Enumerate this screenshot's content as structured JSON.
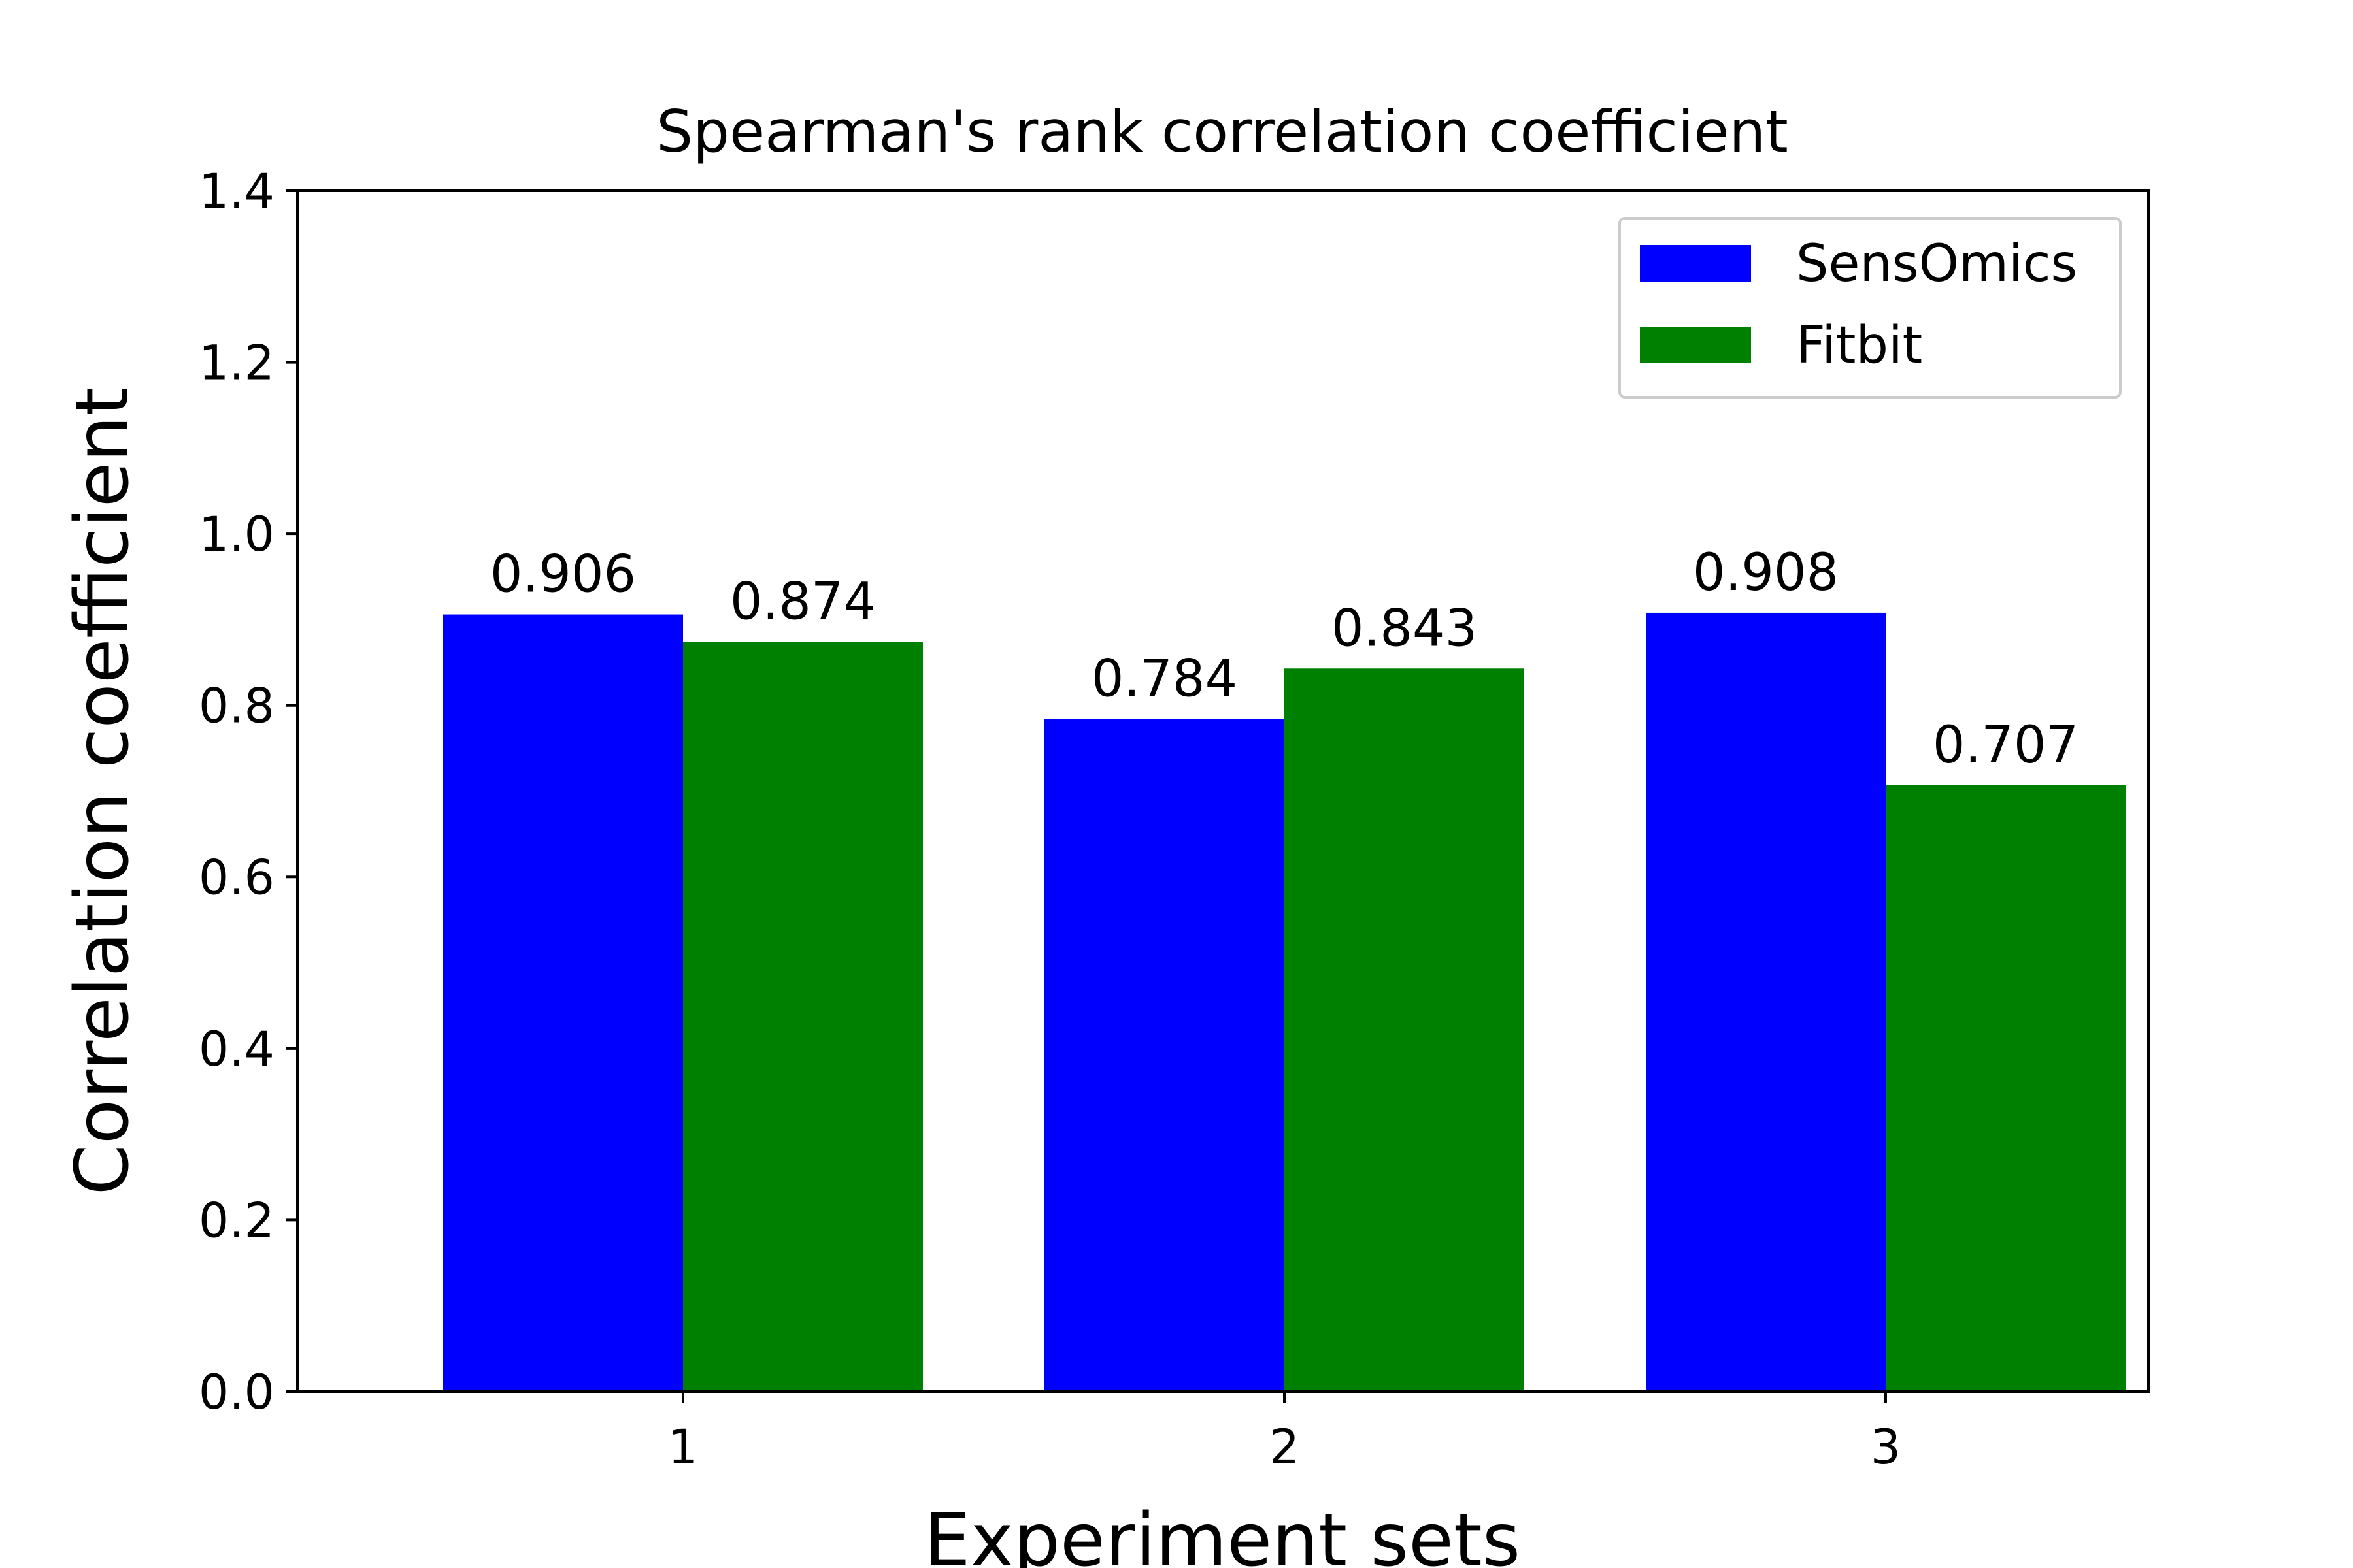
{
  "chart_data": {
    "type": "bar",
    "title": "Spearman's rank correlation coefficient",
    "xlabel": "Experiment sets",
    "ylabel": "Correlation coefficient",
    "categories": [
      "1",
      "2",
      "3"
    ],
    "series": [
      {
        "name": "SensOmics",
        "color": "#0000ff",
        "values": [
          0.906,
          0.784,
          0.908
        ],
        "labels": [
          "0.906",
          "0.784",
          "0.908"
        ]
      },
      {
        "name": "Fitbit",
        "color": "#008000",
        "values": [
          0.874,
          0.843,
          0.707
        ],
        "labels": [
          "0.874",
          "0.843",
          "0.707"
        ]
      }
    ],
    "ylim": [
      0,
      1.4
    ],
    "yticks": [
      0.0,
      0.2,
      0.4,
      0.6,
      0.8,
      1.0,
      1.2,
      1.4
    ],
    "ytick_labels": [
      "0.0",
      "0.2",
      "0.4",
      "0.6",
      "0.8",
      "1.0",
      "1.2",
      "1.4"
    ],
    "grid": false,
    "legend_position": "top-right"
  }
}
